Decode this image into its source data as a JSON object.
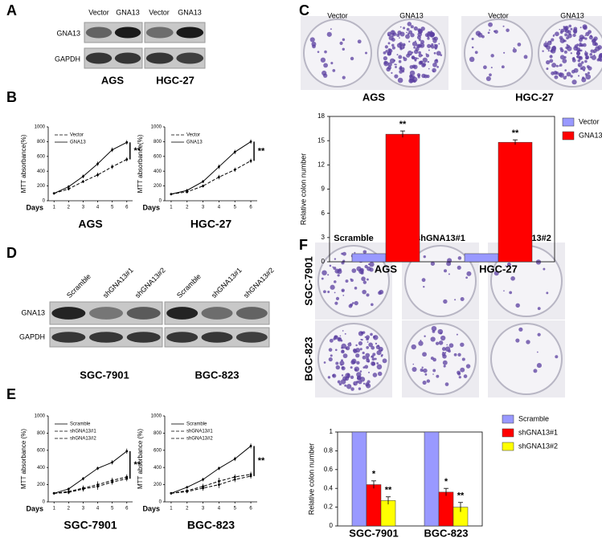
{
  "panel_labels": [
    "A",
    "B",
    "C",
    "D",
    "E",
    "F"
  ],
  "blot_a": {
    "columns": [
      "Vector",
      "GNA13",
      "Vector",
      "GNA13"
    ],
    "rows": [
      "GNA13",
      "GAPDH"
    ],
    "cell_lines": [
      "AGS",
      "HGC-27"
    ]
  },
  "colony_c": {
    "columns": [
      "Vector",
      "GNA13",
      "Vector",
      "GNA13"
    ],
    "cell_lines": [
      "AGS",
      "HGC-27"
    ]
  },
  "blot_d": {
    "columns": [
      "Scramble",
      "shGNA13#1",
      "shGNA13#2",
      "Scramble",
      "shGNA13#1",
      "shGNA13#2"
    ],
    "rows": [
      "GNA13",
      "GAPDH"
    ],
    "cell_lines": [
      "SGC-7901",
      "BGC-823"
    ]
  },
  "colony_f": {
    "columns": [
      "Scramble",
      "shGNA13#1",
      "shGNA13#2"
    ],
    "rows": [
      "SGC-7901",
      "BGC-823"
    ]
  },
  "chart_data": [
    {
      "type": "line",
      "title": "AGS",
      "x_label": "Days",
      "y_label": "MTT absorbance(%)",
      "annotation": "**",
      "x": [
        1,
        2,
        3,
        4,
        5,
        6
      ],
      "xlim": [
        0.6,
        6.4
      ],
      "xticks": [
        1,
        2,
        3,
        4,
        5,
        6
      ],
      "ylim": [
        0,
        1000
      ],
      "yticks": [
        0,
        200,
        400,
        600,
        800,
        1000
      ],
      "series": [
        {
          "name": "Vector",
          "color": "#000000",
          "dash": true,
          "values": [
            100,
            160,
            260,
            350,
            460,
            560
          ],
          "errors": [
            10,
            20,
            20,
            30,
            30,
            30
          ]
        },
        {
          "name": "GNA13",
          "color": "#000000",
          "dash": false,
          "values": [
            100,
            190,
            330,
            500,
            690,
            790
          ],
          "errors": [
            10,
            20,
            25,
            30,
            30,
            30
          ]
        }
      ]
    },
    {
      "type": "line",
      "title": "HGC-27",
      "x_label": "Days",
      "y_label": "MTT absorbance(%)",
      "annotation": "**",
      "x": [
        1,
        2,
        3,
        4,
        5,
        6
      ],
      "xlim": [
        0.6,
        6.4
      ],
      "xticks": [
        1,
        2,
        3,
        4,
        5,
        6
      ],
      "ylim": [
        0,
        1000
      ],
      "yticks": [
        0,
        200,
        400,
        600,
        800,
        1000
      ],
      "series": [
        {
          "name": "Vector",
          "color": "#000000",
          "dash": true,
          "values": [
            90,
            120,
            200,
            320,
            420,
            540
          ],
          "errors": [
            10,
            20,
            20,
            30,
            30,
            30
          ]
        },
        {
          "name": "GNA13",
          "color": "#000000",
          "dash": false,
          "values": [
            90,
            140,
            260,
            460,
            660,
            800
          ],
          "errors": [
            10,
            20,
            20,
            30,
            30,
            30
          ]
        }
      ]
    },
    {
      "type": "bar",
      "y_label": "Relative colon number",
      "categories": [
        "AGS",
        "HGC-27"
      ],
      "ylim": [
        0,
        18
      ],
      "yticks": [
        0,
        3,
        6,
        9,
        12,
        15,
        18
      ],
      "series": [
        {
          "name": "Vector",
          "color": "#9999ff",
          "values": [
            1,
            1
          ],
          "errors": [
            0,
            0
          ]
        },
        {
          "name": "GNA13",
          "color": "#ff0000",
          "values": [
            15.8,
            14.8
          ],
          "errors": [
            0.4,
            0.3
          ],
          "annotations": [
            "**",
            "**"
          ]
        }
      ]
    },
    {
      "type": "line",
      "title": "SGC-7901",
      "x_label": "Days",
      "y_label": "MTT absorbance (%)",
      "annotation": "**",
      "x": [
        1,
        2,
        3,
        4,
        5,
        6
      ],
      "xlim": [
        0.6,
        6.4
      ],
      "xticks": [
        1,
        2,
        3,
        4,
        5,
        6
      ],
      "ylim": [
        0,
        1000
      ],
      "yticks": [
        0,
        200,
        400,
        600,
        800,
        1000
      ],
      "series": [
        {
          "name": "Scramble",
          "color": "#000000",
          "dash": false,
          "values": [
            100,
            150,
            270,
            390,
            460,
            590
          ],
          "errors": [
            10,
            15,
            20,
            20,
            25,
            30
          ]
        },
        {
          "name": "shGNA13#1",
          "color": "#000000",
          "dash": true,
          "values": [
            100,
            120,
            160,
            200,
            250,
            290
          ],
          "errors": [
            10,
            20,
            30,
            40,
            30,
            30
          ]
        },
        {
          "name": "shGNA13#2",
          "color": "#000000",
          "dash": true,
          "values": [
            100,
            110,
            150,
            180,
            230,
            270
          ],
          "errors": [
            10,
            20,
            30,
            40,
            30,
            30
          ]
        }
      ]
    },
    {
      "type": "line",
      "title": "BGC-823",
      "x_label": "Days",
      "y_label": "MTT absorbance (%)",
      "annotation": "**",
      "x": [
        1,
        2,
        3,
        4,
        5,
        6
      ],
      "xlim": [
        0.6,
        6.4
      ],
      "xticks": [
        1,
        2,
        3,
        4,
        5,
        6
      ],
      "ylim": [
        0,
        1000
      ],
      "yticks": [
        0,
        200,
        400,
        600,
        800,
        1000
      ],
      "series": [
        {
          "name": "Scramble",
          "color": "#000000",
          "dash": false,
          "values": [
            100,
            170,
            260,
            390,
            500,
            650
          ],
          "errors": [
            10,
            15,
            20,
            20,
            25,
            30
          ]
        },
        {
          "name": "shGNA13#1",
          "color": "#000000",
          "dash": true,
          "values": [
            100,
            130,
            180,
            240,
            290,
            320
          ],
          "errors": [
            10,
            20,
            30,
            40,
            30,
            30
          ]
        },
        {
          "name": "shGNA13#2",
          "color": "#000000",
          "dash": true,
          "values": [
            100,
            120,
            160,
            200,
            260,
            300
          ],
          "errors": [
            10,
            20,
            30,
            40,
            30,
            30
          ]
        }
      ]
    },
    {
      "type": "bar",
      "y_label": "Relative colon number",
      "categories": [
        "SGC-7901",
        "BGC-823"
      ],
      "ylim": [
        0,
        1
      ],
      "yticks": [
        0,
        0.2,
        0.4,
        0.6,
        0.8,
        1
      ],
      "series": [
        {
          "name": "Scramble",
          "color": "#9999ff",
          "values": [
            1,
            1
          ],
          "errors": [
            0,
            0
          ]
        },
        {
          "name": "shGNA13#1",
          "color": "#ff0000",
          "values": [
            0.44,
            0.36
          ],
          "errors": [
            0.04,
            0.04
          ],
          "annotations": [
            "*",
            "*"
          ]
        },
        {
          "name": "shGNA13#2",
          "color": "#ffff00",
          "values": [
            0.27,
            0.2
          ],
          "errors": [
            0.04,
            0.05
          ],
          "annotations": [
            "**",
            "**"
          ]
        }
      ]
    }
  ]
}
